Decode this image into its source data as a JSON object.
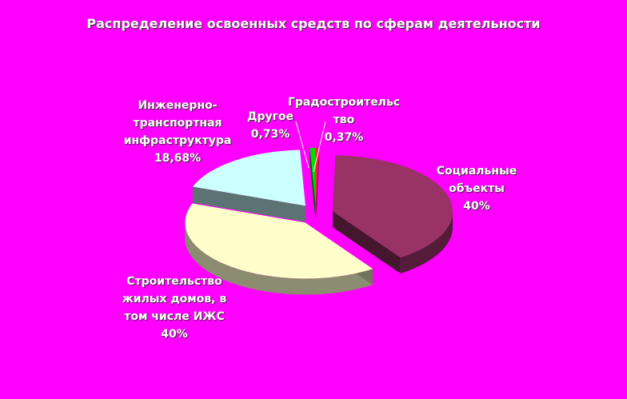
{
  "chart_data": {
    "type": "pie",
    "title": "Распределение освоенных средств по сферам деятельности",
    "categories": [
      "Градостроительс\nтво",
      "Социальные\nобъекты",
      "Строительство\nжилых домов, в\nтом числе ИЖС",
      "Инженерно-\nтранспортная\nинфраструктура",
      "Другое"
    ],
    "values": [
      0.37,
      40,
      40,
      18.68,
      0.73
    ],
    "value_labels": [
      "0,37%",
      "40%",
      "40%",
      "18,68%",
      "0,73%"
    ],
    "colors": [
      "#ff2020",
      "#993366",
      "#ffffcc",
      "#ccffff",
      "#00dd00"
    ]
  }
}
